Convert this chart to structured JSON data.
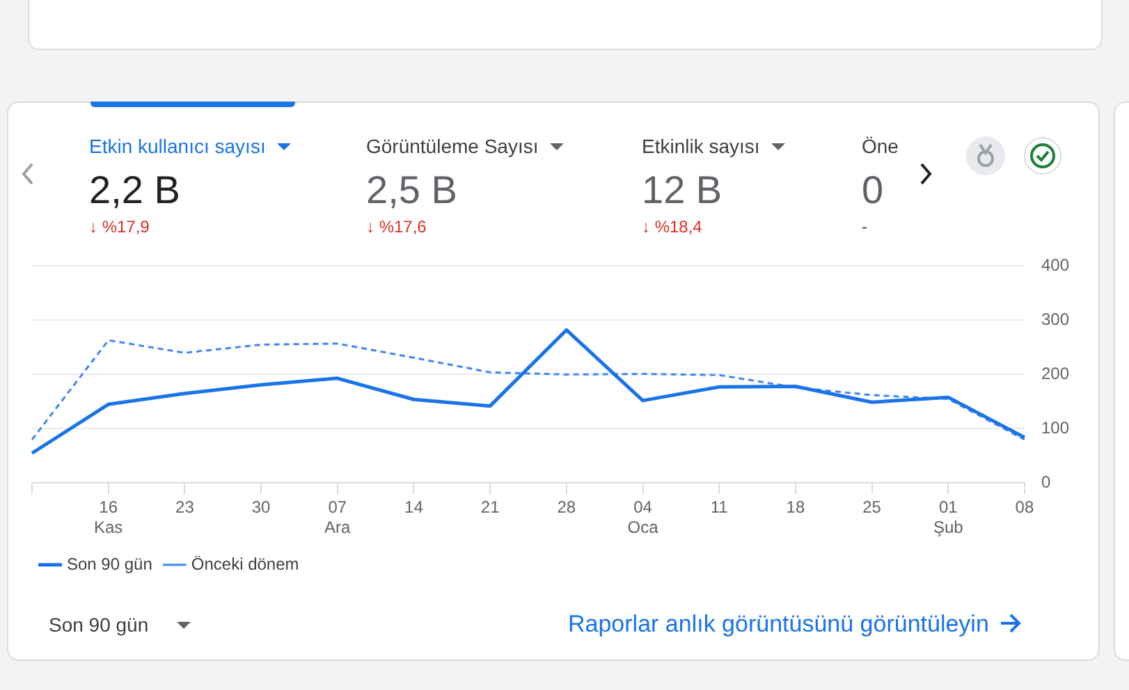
{
  "chart_data": {
    "type": "line",
    "categories": [
      null,
      "16\nKas",
      "23",
      "30",
      "07\nAra",
      "14",
      "21",
      "28",
      "04\nOca",
      "11",
      "18",
      "25",
      "01\nŞub",
      "08"
    ],
    "series": [
      {
        "name": "Son 90 gün",
        "color": "#1a73e8",
        "line_style": "solid",
        "values": [
          55,
          145,
          165,
          181,
          193,
          154,
          142,
          282,
          152,
          177,
          178,
          149,
          158,
          84
        ]
      },
      {
        "name": "Önceki dönem",
        "color": "#4285f4",
        "line_style": "dashed",
        "values": [
          80,
          263,
          240,
          255,
          257,
          231,
          204,
          200,
          201,
          199,
          176,
          162,
          155,
          80
        ]
      }
    ],
    "ylim": [
      0,
      400
    ],
    "yticks": [
      0,
      100,
      200,
      300,
      400
    ],
    "grid": "y",
    "legend": "bottom",
    "marker": "none",
    "annotations": [
      "Etkin kullanıcı sayısı",
      "2,2 B",
      "↓ %17,9",
      "Görüntüleme Sayısı",
      "2,5 B",
      "↓ %17,6",
      "Etkinlik sayısı",
      "12 B",
      "↓ %18,4",
      "Öne",
      "0",
      "-",
      "Son 90 gün",
      "Raporlar anlık görüntüsünü görüntüleyin"
    ]
  }
}
